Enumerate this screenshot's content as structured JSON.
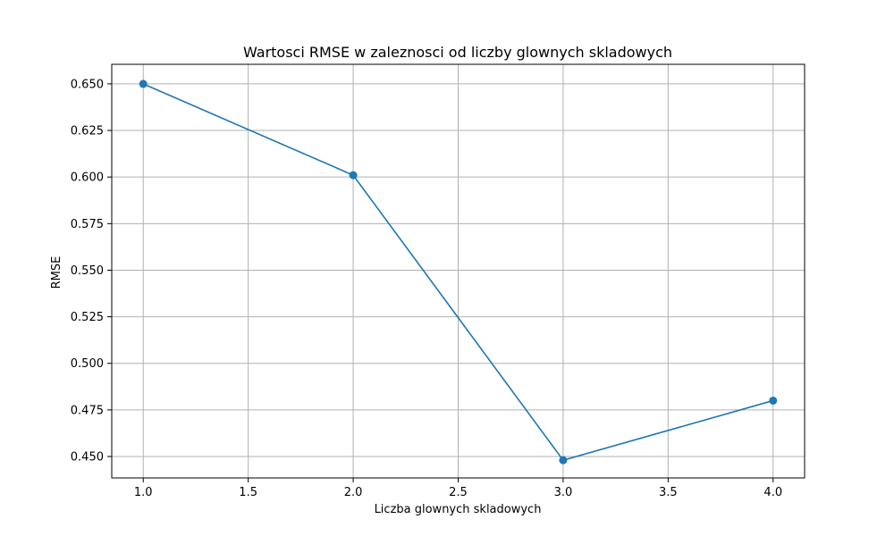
{
  "chart_data": {
    "type": "line",
    "title": "Wartosci RMSE w zaleznosci od liczby glownych skladowych",
    "xlabel": "Liczba glownych skladowych",
    "ylabel": "RMSE",
    "xlim": [
      0.85,
      4.15
    ],
    "ylim": [
      0.4385,
      0.6605
    ],
    "xticks": [
      1.0,
      1.5,
      2.0,
      2.5,
      3.0,
      3.5,
      4.0
    ],
    "xtick_labels": [
      "1.0",
      "1.5",
      "2.0",
      "2.5",
      "3.0",
      "3.5",
      "4.0"
    ],
    "yticks": [
      0.45,
      0.475,
      0.5,
      0.525,
      0.55,
      0.575,
      0.6,
      0.625,
      0.65
    ],
    "ytick_labels": [
      "0.450",
      "0.475",
      "0.500",
      "0.525",
      "0.550",
      "0.575",
      "0.600",
      "0.625",
      "0.650"
    ],
    "grid": true,
    "series": [
      {
        "x": [
          1,
          2,
          3,
          4
        ],
        "y": [
          0.65,
          0.601,
          0.448,
          0.48
        ],
        "color": "#1f77b4",
        "marker": "circle"
      }
    ]
  }
}
